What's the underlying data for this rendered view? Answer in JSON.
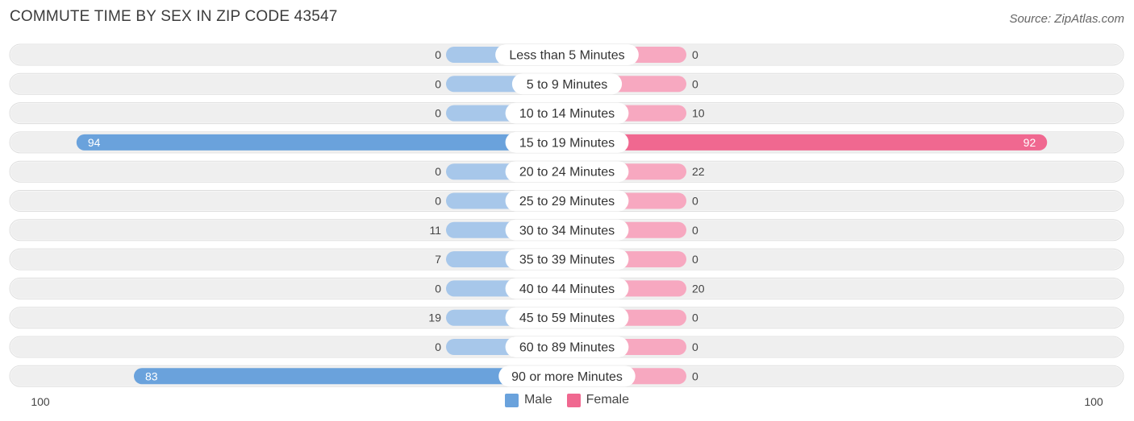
{
  "title": "COMMUTE TIME BY SEX IN ZIP CODE 43547",
  "source": "Source: ZipAtlas.com",
  "colors": {
    "male": "#6aa2dc",
    "male_light": "#a7c7ea",
    "female": "#f06890",
    "female_light": "#f7a8c0",
    "track": "#efefef"
  },
  "legend": {
    "male_label": "Male",
    "female_label": "Female"
  },
  "axis": {
    "left_label": "100",
    "right_label": "100"
  },
  "chart_data": {
    "type": "bar",
    "orientation": "horizontal-diverging",
    "categories": [
      "Less than 5 Minutes",
      "5 to 9 Minutes",
      "10 to 14 Minutes",
      "15 to 19 Minutes",
      "20 to 24 Minutes",
      "25 to 29 Minutes",
      "30 to 34 Minutes",
      "35 to 39 Minutes",
      "40 to 44 Minutes",
      "45 to 59 Minutes",
      "60 to 89 Minutes",
      "90 or more Minutes"
    ],
    "series": [
      {
        "name": "Male",
        "values": [
          0,
          0,
          0,
          94,
          0,
          0,
          11,
          7,
          0,
          19,
          0,
          83
        ]
      },
      {
        "name": "Female",
        "values": [
          0,
          0,
          10,
          92,
          22,
          0,
          0,
          0,
          20,
          0,
          0,
          0
        ]
      }
    ],
    "xlim": [
      -100,
      100
    ],
    "legend_position": "bottom-center"
  }
}
